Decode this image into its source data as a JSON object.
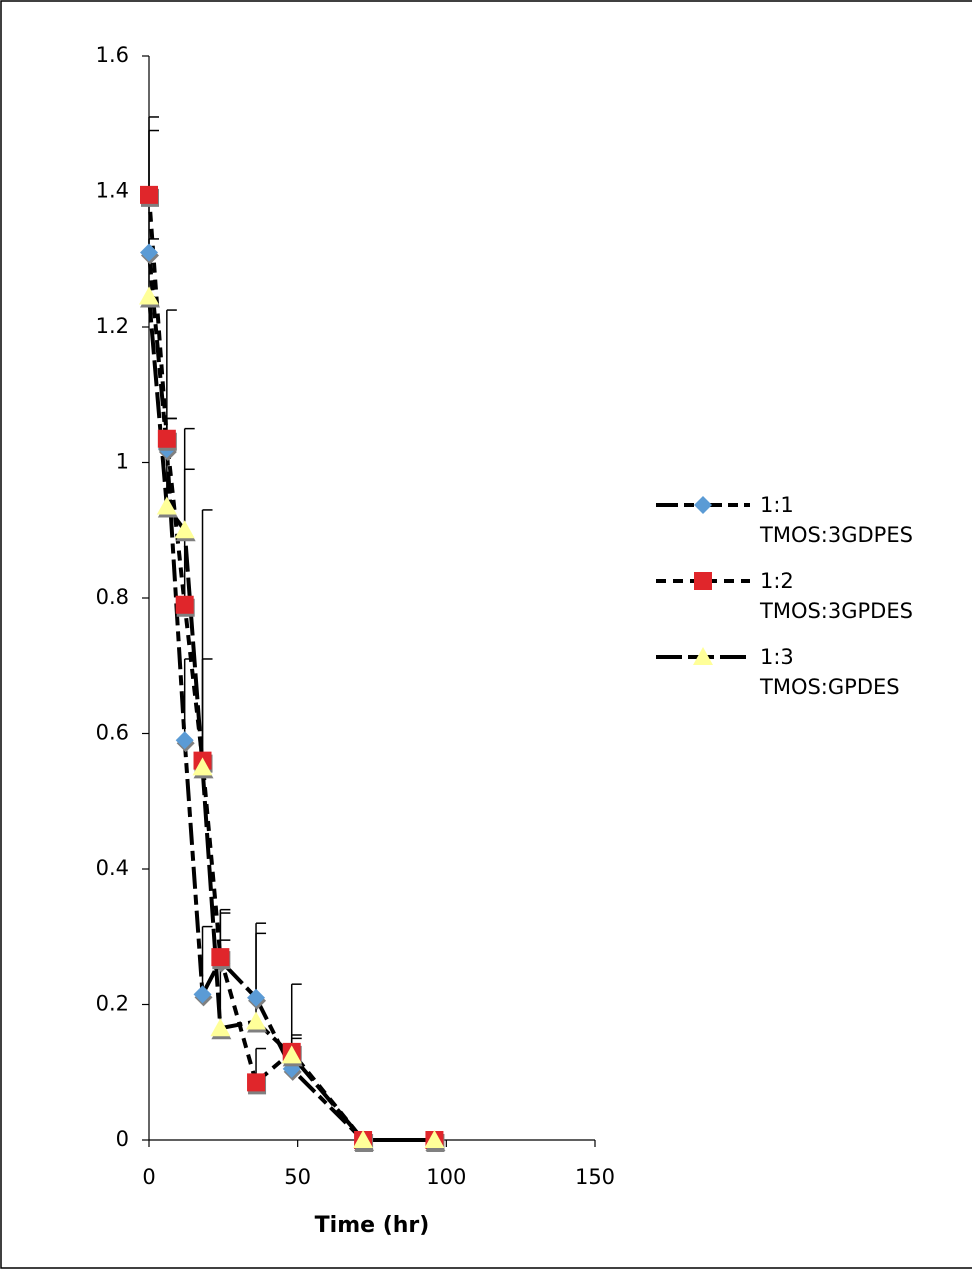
{
  "chart_data": {
    "type": "line",
    "x_label": "Time (hr)",
    "x": [
      0,
      6,
      12,
      18,
      24,
      36,
      48,
      72,
      96
    ],
    "series": [
      {
        "name": "1:1 TMOS:3GDPES",
        "color": "#5b9bd5",
        "marker": "diamond",
        "dash": "22 6 10 6",
        "values": [
          1.31,
          1.02,
          0.59,
          0.215,
          0.265,
          0.21,
          0.105,
          0,
          0
        ],
        "errors": [
          0.18,
          0.045,
          0.12,
          0.1,
          0.07,
          0.11,
          0.045,
          0,
          0
        ]
      },
      {
        "name": "1:2 TMOS:3GPDES",
        "color": "#e0262b",
        "marker": "square",
        "dash": "10 7",
        "values": [
          1.395,
          1.035,
          0.79,
          0.56,
          0.27,
          0.085,
          0.13,
          0,
          0
        ],
        "errors": [
          0.115,
          0.19,
          0.26,
          0.37,
          0.07,
          0.05,
          0.1,
          0,
          0
        ]
      },
      {
        "name": "1:3 TMOS:GPDES",
        "color": "#ffff99",
        "marker": "triangle",
        "dash": "26 6",
        "values": [
          1.245,
          0.935,
          0.9,
          0.55,
          0.165,
          0.175,
          0.125,
          0,
          0
        ],
        "errors": [
          0.085,
          0.13,
          0.09,
          0.16,
          0.13,
          0.13,
          0.03,
          0,
          0
        ]
      }
    ],
    "xlim": [
      0,
      150
    ],
    "xticks": [
      0,
      50,
      100,
      150
    ],
    "ylim": [
      0,
      1.6
    ],
    "yticks": [
      0,
      0.2,
      0.4,
      0.6,
      0.8,
      1,
      1.2,
      1.4,
      1.6
    ],
    "legend": "right"
  }
}
